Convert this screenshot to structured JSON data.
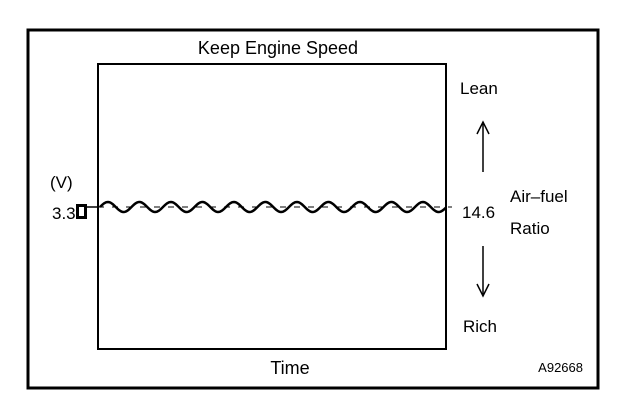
{
  "title": "Keep Engine Speed",
  "x_label": "Time",
  "y_unit": "(V)",
  "y_value": "3.3",
  "y_value_suffix_glyph": "□",
  "ratio_value": "14.6",
  "ratio_label_line1": "Air–fuel",
  "ratio_label_line2": "Ratio",
  "lean_label": "Lean",
  "rich_label": "Rich",
  "figure_code": "A92668",
  "colors": {
    "line": "#000000",
    "background": "#ffffff"
  }
}
